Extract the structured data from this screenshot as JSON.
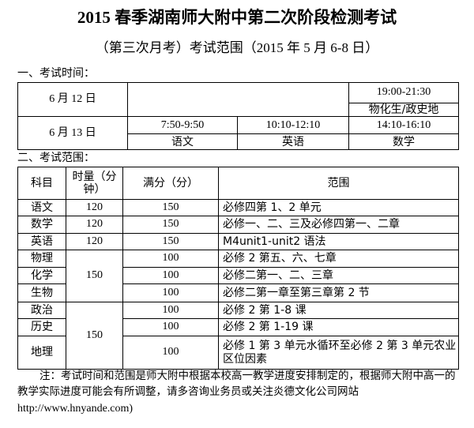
{
  "title": "2015 春季湖南师大附中第二次阶段检测考试",
  "subtitle": "（第三次月考）考试范围（2015 年 5 月 6-8 日）",
  "section1": "一、考试时间：",
  "schedule": {
    "day1": {
      "date": "6 月 12 日",
      "time": "19:00-21:30",
      "subject": "物化生/政史地"
    },
    "day2": {
      "date": "6 月 13 日",
      "slots": [
        {
          "time": "7:50-9:50",
          "subject": "语文"
        },
        {
          "time": "10:10-12:10",
          "subject": "英语"
        },
        {
          "time": "14:10-16:10",
          "subject": "数学"
        }
      ]
    }
  },
  "section2": "二、考试范围：",
  "scope": {
    "headers": [
      "科目",
      "时量（分钟）",
      "满分（分）",
      "范围"
    ],
    "rows": [
      {
        "subject": "语文",
        "duration": "120",
        "score": "150",
        "range": "必修四第 1、2 单元"
      },
      {
        "subject": "数学",
        "duration": "120",
        "score": "150",
        "range": "必修一、二、三及必修四第一、二章"
      },
      {
        "subject": "英语",
        "duration": "120",
        "score": "150",
        "range": "M4unit1-unit2 语法"
      },
      {
        "subject": "物理",
        "duration": "150",
        "score": "100",
        "range": "必修 2 第五、六、七章"
      },
      {
        "subject": "化学",
        "score": "100",
        "range": "必修二第一、二、三章"
      },
      {
        "subject": "生物",
        "score": "100",
        "range": "必修二第一章至第三章第 2 节"
      },
      {
        "subject": "政治",
        "duration": "150",
        "score": "100",
        "range": "必修 2 第 1-8 课"
      },
      {
        "subject": "历史",
        "score": "100",
        "range": "必修 2 第 1-19 课"
      },
      {
        "subject": "地理",
        "score": "100",
        "range": "必修 1 第 3 单元水循环至必修 2 第 3 单元农业区位因素"
      }
    ]
  },
  "note": "注：考试时间和范围是师大附中根据本校高一教学进度安排制定的，根据师大附中高一的教学实际进度可能会有所调整，请多咨询业务员或关注炎德文化公司网站",
  "url": "http://www.hnyande.com)"
}
